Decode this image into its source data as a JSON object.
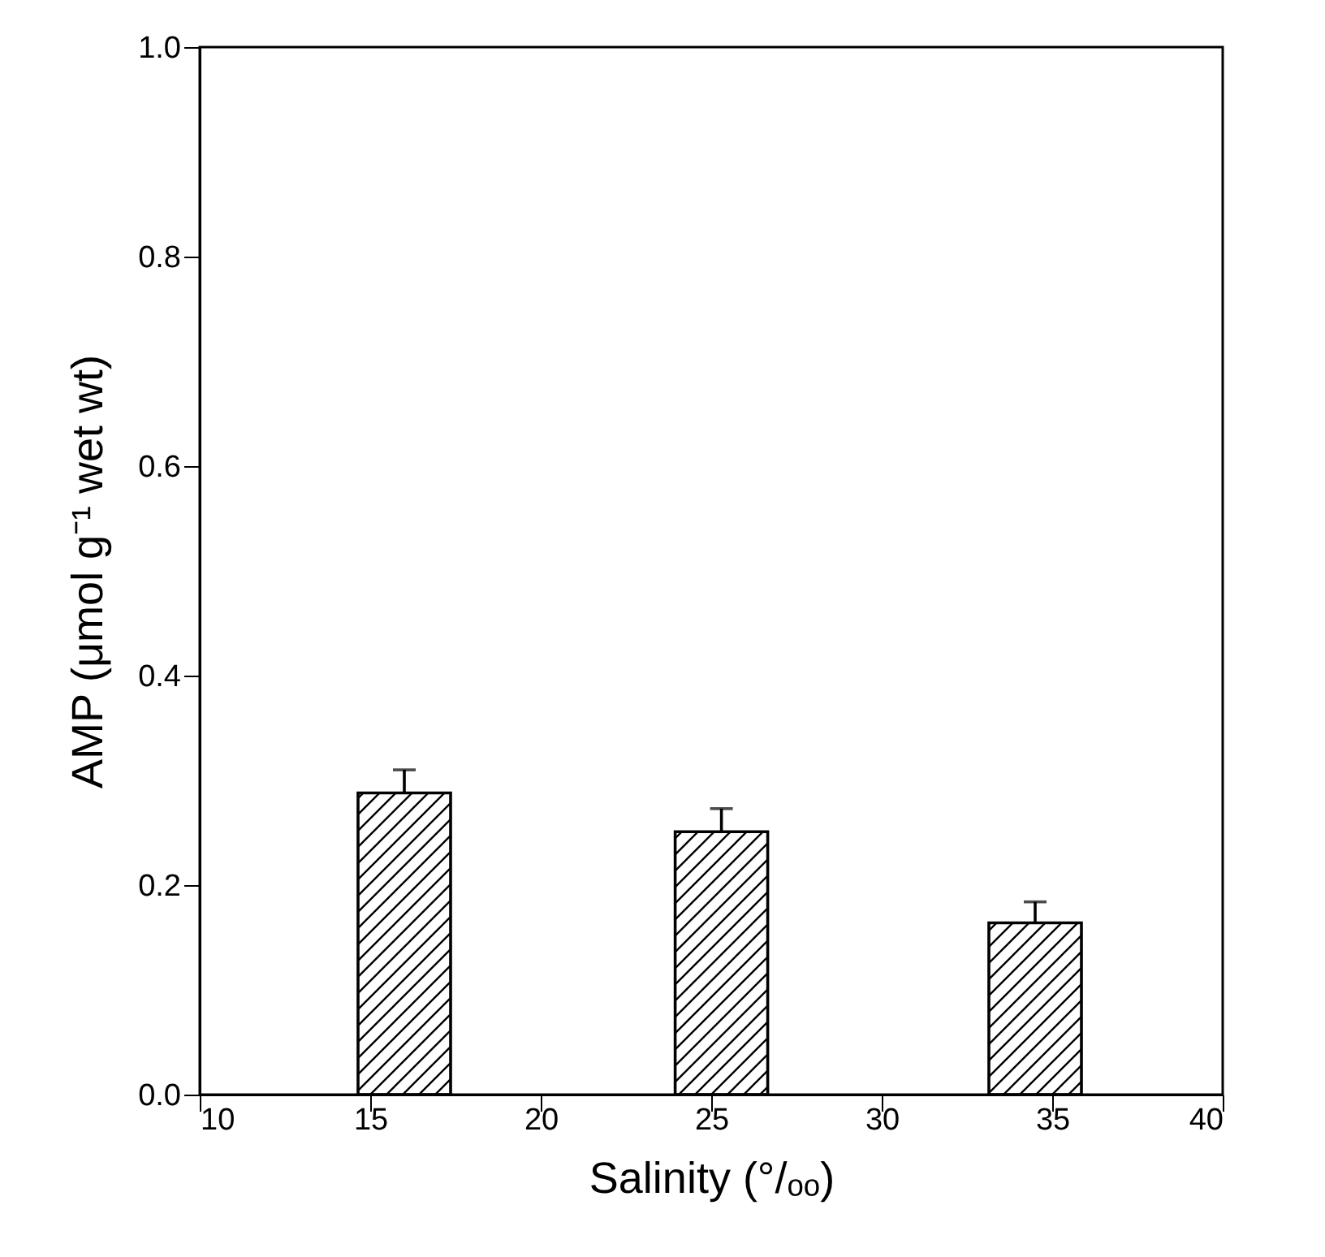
{
  "chart_data": {
    "type": "bar",
    "xlabel": "Salinity (°/ₒₒ)",
    "ylabel": "AMP (μmol g⁻¹ wet wt)",
    "x": [
      16,
      25.3,
      34.5
    ],
    "series": [
      {
        "color": "#000000",
        "values": [
          0.288,
          0.251,
          0.164
        ],
        "errors": [
          0.022,
          0.022,
          0.02
        ]
      }
    ],
    "xlim": [
      10,
      40
    ],
    "xticks": [
      10,
      15,
      20,
      25,
      30,
      35,
      40
    ],
    "ylim": [
      0,
      1
    ],
    "yticks": [
      {
        "value": 0,
        "label": "0.0"
      },
      0.2,
      0.4,
      0.6,
      0.8,
      {
        "value": 1,
        "label": "1.0"
      }
    ],
    "grid": false,
    "legend": false
  }
}
